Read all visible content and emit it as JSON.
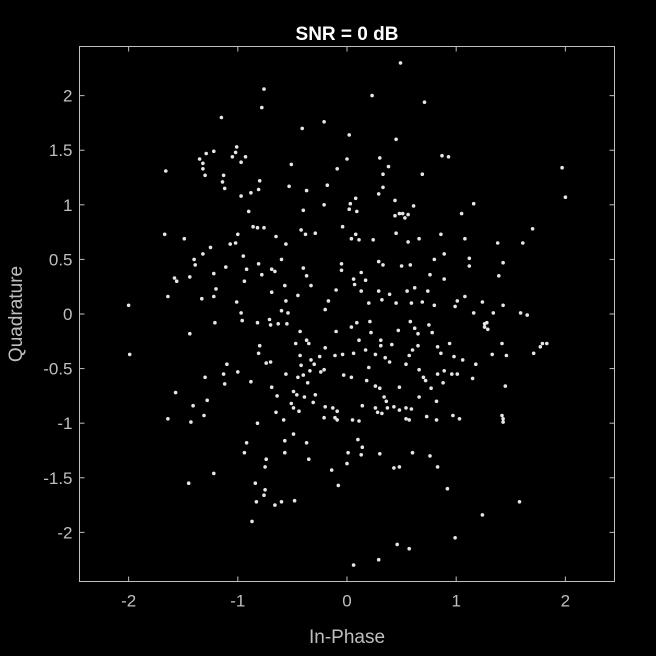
{
  "chart_data": {
    "type": "scatter",
    "title": "SNR = 0 dB",
    "xlabel": "In-Phase",
    "ylabel": "Quadrature",
    "xlim": [
      -2.45,
      2.45
    ],
    "ylim": [
      -2.45,
      2.45
    ],
    "xticks": [
      -2,
      -1,
      0,
      1,
      2
    ],
    "xtick_labels": [
      "-2",
      "-1",
      "0",
      "1",
      "2"
    ],
    "yticks": [
      2,
      1.5,
      1,
      0.5,
      0,
      -0.5,
      -1,
      -1.5,
      -2
    ],
    "ytick_labels": [
      "2",
      "1.5",
      "1",
      "0.5",
      "0",
      "-0.5",
      "-1",
      "-1.5",
      "-2"
    ],
    "grid": false,
    "colors": {
      "background": "#000000",
      "axes": "#bfbfbf",
      "points": "#e6e6e6",
      "title": "#ffffff"
    },
    "points": [
      [
        0.49,
        2.3
      ],
      [
        -0.76,
        2.06
      ],
      [
        -0.78,
        1.89
      ],
      [
        0.23,
        2.0
      ],
      [
        0.71,
        1.94
      ],
      [
        -1.15,
        1.8
      ],
      [
        -0.21,
        1.76
      ],
      [
        -0.41,
        1.7
      ],
      [
        0.02,
        1.64
      ],
      [
        0.45,
        1.6
      ],
      [
        -1.29,
        1.47
      ],
      [
        -1.22,
        1.49
      ],
      [
        -1.35,
        1.42
      ],
      [
        -1.32,
        1.38
      ],
      [
        -1.01,
        1.53
      ],
      [
        -1.02,
        1.48
      ],
      [
        -1.05,
        1.44
      ],
      [
        -0.93,
        1.44
      ],
      [
        -0.97,
        1.39
      ],
      [
        -1.32,
        1.33
      ],
      [
        -1.3,
        1.27
      ],
      [
        -1.13,
        1.27
      ],
      [
        -1.66,
        1.31
      ],
      [
        -0.51,
        1.37
      ],
      [
        0.0,
        1.42
      ],
      [
        -0.09,
        1.33
      ],
      [
        0.3,
        1.43
      ],
      [
        0.38,
        1.35
      ],
      [
        0.87,
        1.45
      ],
      [
        0.93,
        1.44
      ],
      [
        0.33,
        1.28
      ],
      [
        0.33,
        1.16
      ],
      [
        0.69,
        1.28
      ],
      [
        -1.14,
        1.21
      ],
      [
        -1.12,
        1.15
      ],
      [
        -0.97,
        1.08
      ],
      [
        -0.8,
        1.22
      ],
      [
        -0.81,
        1.14
      ],
      [
        -0.88,
        1.11
      ],
      [
        -0.53,
        1.17
      ],
      [
        -0.37,
        1.13
      ],
      [
        -0.18,
        1.18
      ],
      [
        -0.21,
        1.0
      ],
      [
        0.03,
        1.01
      ],
      [
        0.08,
        1.06
      ],
      [
        0.29,
        1.1
      ],
      [
        0.44,
        1.04
      ],
      [
        0.61,
        0.99
      ],
      [
        0.48,
        0.92
      ],
      [
        0.51,
        0.92
      ],
      [
        0.56,
        0.91
      ],
      [
        0.44,
        0.9
      ],
      [
        0.53,
        0.88
      ],
      [
        0.02,
        0.96
      ],
      [
        0.09,
        0.94
      ],
      [
        1.97,
        1.34
      ],
      [
        2.0,
        1.07
      ],
      [
        1.16,
        1.01
      ],
      [
        1.05,
        0.92
      ],
      [
        -0.9,
        0.94
      ],
      [
        -0.86,
        0.8
      ],
      [
        -0.82,
        0.79
      ],
      [
        -0.76,
        0.79
      ],
      [
        -0.4,
        0.95
      ],
      [
        -0.65,
        0.71
      ],
      [
        -0.56,
        0.64
      ],
      [
        -0.42,
        0.77
      ],
      [
        -0.38,
        0.73
      ],
      [
        -0.29,
        0.74
      ],
      [
        -0.04,
        0.8
      ],
      [
        -1.0,
        0.73
      ],
      [
        -1.07,
        0.64
      ],
      [
        -1.02,
        0.65
      ],
      [
        0.08,
        0.73
      ],
      [
        0.04,
        0.69
      ],
      [
        0.11,
        0.68
      ],
      [
        0.24,
        0.68
      ],
      [
        0.45,
        0.74
      ],
      [
        0.56,
        0.66
      ],
      [
        0.66,
        0.69
      ],
      [
        0.86,
        0.73
      ],
      [
        0.89,
        0.55
      ],
      [
        0.8,
        0.5
      ],
      [
        1.08,
        0.69
      ],
      [
        1.38,
        0.65
      ],
      [
        1.7,
        0.78
      ],
      [
        1.61,
        0.65
      ],
      [
        1.43,
        0.47
      ],
      [
        1.39,
        0.35
      ],
      [
        1.12,
        0.51
      ],
      [
        1.12,
        0.44
      ],
      [
        -1.25,
        0.61
      ],
      [
        -1.32,
        0.55
      ],
      [
        -1.67,
        0.73
      ],
      [
        -1.49,
        0.69
      ],
      [
        -1.4,
        0.5
      ],
      [
        -1.39,
        0.45
      ],
      [
        -1.11,
        0.43
      ],
      [
        -0.95,
        0.53
      ],
      [
        -0.92,
        0.41
      ],
      [
        -0.81,
        0.46
      ],
      [
        -0.69,
        0.41
      ],
      [
        -0.6,
        0.5
      ],
      [
        -0.66,
        0.39
      ],
      [
        -0.78,
        0.36
      ],
      [
        -0.94,
        0.3
      ],
      [
        -1.22,
        0.37
      ],
      [
        -1.44,
        0.34
      ],
      [
        -1.56,
        0.3
      ],
      [
        -1.58,
        0.33
      ],
      [
        -0.4,
        0.42
      ],
      [
        -0.37,
        0.35
      ],
      [
        -0.33,
        0.26
      ],
      [
        -0.05,
        0.46
      ],
      [
        -0.05,
        0.4
      ],
      [
        0.29,
        0.48
      ],
      [
        0.33,
        0.45
      ],
      [
        0.5,
        0.44
      ],
      [
        0.58,
        0.45
      ],
      [
        0.76,
        0.36
      ],
      [
        0.13,
        0.38
      ],
      [
        0.07,
        0.27
      ],
      [
        0.06,
        0.32
      ],
      [
        0.17,
        0.31
      ],
      [
        0.89,
        0.32
      ],
      [
        -1.2,
        0.23
      ],
      [
        -1.22,
        0.16
      ],
      [
        -1.33,
        0.14
      ],
      [
        -1.64,
        0.16
      ],
      [
        -2.0,
        0.08
      ],
      [
        -0.69,
        0.2
      ],
      [
        -0.57,
        0.26
      ],
      [
        -0.56,
        0.12
      ],
      [
        -0.45,
        0.17
      ],
      [
        -0.6,
        0.03
      ],
      [
        -0.1,
        0.22
      ],
      [
        -0.17,
        0.12
      ],
      [
        -0.2,
        0.04
      ],
      [
        -0.54,
        0.01
      ],
      [
        0.13,
        0.21
      ],
      [
        0.29,
        0.21
      ],
      [
        0.2,
        0.1
      ],
      [
        0.32,
        0.13
      ],
      [
        0.39,
        0.18
      ],
      [
        0.45,
        0.1
      ],
      [
        0.55,
        0.21
      ],
      [
        0.62,
        0.24
      ],
      [
        0.69,
        0.11
      ],
      [
        0.74,
        0.21
      ],
      [
        0.59,
        0.1
      ],
      [
        0.8,
        0.08
      ],
      [
        0.99,
        0.07
      ],
      [
        1.01,
        0.12
      ],
      [
        1.08,
        0.16
      ],
      [
        1.16,
        0.01
      ],
      [
        1.24,
        0.11
      ],
      [
        1.34,
        0.01
      ],
      [
        1.43,
        0.08
      ],
      [
        1.59,
        0.01
      ],
      [
        1.65,
        -0.01
      ],
      [
        1.28,
        -0.08
      ],
      [
        1.26,
        -0.12
      ],
      [
        1.26,
        -0.09
      ],
      [
        1.29,
        -0.14
      ],
      [
        1.42,
        -0.27
      ],
      [
        1.79,
        -0.27
      ],
      [
        1.83,
        -0.27
      ],
      [
        1.77,
        -0.3
      ],
      [
        1.33,
        -0.37
      ],
      [
        1.71,
        -0.36
      ],
      [
        -1.01,
        0.11
      ],
      [
        -0.97,
        0.01
      ],
      [
        -0.96,
        -0.06
      ],
      [
        -0.82,
        -0.08
      ],
      [
        -0.71,
        -0.05
      ],
      [
        -0.7,
        -0.1
      ],
      [
        -0.63,
        -0.09
      ],
      [
        -0.55,
        -0.09
      ],
      [
        -1.21,
        -0.08
      ],
      [
        -1.44,
        -0.18
      ],
      [
        -1.99,
        -0.37
      ],
      [
        -0.43,
        -0.16
      ],
      [
        -0.47,
        -0.27
      ],
      [
        -0.37,
        -0.24
      ],
      [
        -0.35,
        -0.27
      ],
      [
        -0.1,
        -0.16
      ],
      [
        0.04,
        -0.12
      ],
      [
        0.09,
        -0.08
      ],
      [
        0.21,
        -0.07
      ],
      [
        0.22,
        -0.17
      ],
      [
        0.11,
        -0.24
      ],
      [
        0.31,
        -0.24
      ],
      [
        0.41,
        -0.28
      ],
      [
        0.47,
        -0.15
      ],
      [
        0.58,
        -0.07
      ],
      [
        0.62,
        -0.13
      ],
      [
        0.65,
        -0.18
      ],
      [
        0.75,
        -0.1
      ],
      [
        0.78,
        -0.17
      ],
      [
        0.94,
        -0.27
      ],
      [
        0.86,
        -0.36
      ],
      [
        0.83,
        -0.3
      ],
      [
        0.98,
        -0.39
      ],
      [
        1.06,
        -0.42
      ],
      [
        0.65,
        -0.29
      ],
      [
        0.6,
        -0.33
      ],
      [
        0.57,
        -0.38
      ],
      [
        -0.8,
        -0.29
      ],
      [
        -0.81,
        -0.36
      ],
      [
        -0.74,
        -0.45
      ],
      [
        -0.7,
        -0.44
      ],
      [
        -0.43,
        -0.38
      ],
      [
        -0.33,
        -0.42
      ],
      [
        -0.42,
        -0.47
      ],
      [
        -0.3,
        -0.46
      ],
      [
        -0.2,
        -0.31
      ],
      [
        -0.25,
        -0.39
      ],
      [
        -0.11,
        -0.38
      ],
      [
        -0.04,
        -0.37
      ],
      [
        0.06,
        -0.36
      ],
      [
        0.17,
        -0.33
      ],
      [
        0.26,
        -0.37
      ],
      [
        0.31,
        -0.29
      ],
      [
        0.35,
        -0.4
      ],
      [
        0.39,
        -0.44
      ],
      [
        0.54,
        -0.46
      ],
      [
        0.66,
        -0.51
      ],
      [
        0.7,
        -0.58
      ],
      [
        0.72,
        -0.61
      ],
      [
        0.83,
        -0.55
      ],
      [
        0.89,
        -0.52
      ],
      [
        0.96,
        -0.55
      ],
      [
        1.01,
        -0.55
      ],
      [
        1.18,
        -0.46
      ],
      [
        1.15,
        -0.59
      ],
      [
        1.46,
        -0.38
      ],
      [
        -1.1,
        -0.46
      ],
      [
        -1.13,
        -0.55
      ],
      [
        -1.3,
        -0.58
      ],
      [
        -1.57,
        -0.72
      ],
      [
        -0.56,
        -0.55
      ],
      [
        -0.45,
        -0.58
      ],
      [
        -0.4,
        -0.56
      ],
      [
        -0.34,
        -0.52
      ],
      [
        -0.24,
        -0.53
      ],
      [
        -0.21,
        -0.51
      ],
      [
        -0.36,
        -0.63
      ],
      [
        -0.49,
        -0.71
      ],
      [
        -0.64,
        -0.75
      ],
      [
        -0.69,
        -0.67
      ],
      [
        -0.88,
        -0.62
      ],
      [
        -1.0,
        -0.53
      ],
      [
        -1.12,
        -0.64
      ],
      [
        -0.03,
        -0.56
      ],
      [
        0.04,
        -0.58
      ],
      [
        0.18,
        -0.61
      ],
      [
        0.2,
        -0.49
      ],
      [
        0.26,
        -0.66
      ],
      [
        0.3,
        -0.68
      ],
      [
        0.36,
        -0.8
      ],
      [
        0.48,
        -0.67
      ],
      [
        0.77,
        -0.68
      ],
      [
        0.82,
        -0.8
      ],
      [
        0.88,
        -0.63
      ],
      [
        0.66,
        -0.76
      ],
      [
        1.45,
        -0.66
      ],
      [
        -0.29,
        -0.74
      ],
      [
        -0.31,
        -0.81
      ],
      [
        -0.39,
        -0.76
      ],
      [
        -0.46,
        -0.74
      ],
      [
        -0.51,
        -0.82
      ],
      [
        -0.49,
        -0.86
      ],
      [
        -0.44,
        -0.89
      ],
      [
        -0.58,
        -0.97
      ],
      [
        -0.2,
        -0.85
      ],
      [
        -0.13,
        -0.86
      ],
      [
        -0.09,
        -0.89
      ],
      [
        0.14,
        -0.84
      ],
      [
        0.26,
        -0.86
      ],
      [
        0.34,
        -0.76
      ],
      [
        0.37,
        -0.86
      ],
      [
        0.43,
        -0.85
      ],
      [
        0.48,
        -0.88
      ],
      [
        0.54,
        -0.86
      ],
      [
        0.59,
        -0.87
      ],
      [
        -1.41,
        -0.84
      ],
      [
        -1.64,
        -0.96
      ],
      [
        -1.43,
        -0.99
      ],
      [
        -1.28,
        -0.79
      ],
      [
        -1.31,
        -0.93
      ],
      [
        -0.65,
        -0.9
      ],
      [
        -0.82,
        -1.0
      ],
      [
        -0.21,
        -0.95
      ],
      [
        -0.11,
        -0.95
      ],
      [
        -0.09,
        -0.97
      ],
      [
        0.05,
        -0.97
      ],
      [
        0.11,
        -0.98
      ],
      [
        0.28,
        -0.9
      ],
      [
        0.32,
        -0.91
      ],
      [
        0.54,
        -0.96
      ],
      [
        0.57,
        -0.97
      ],
      [
        0.73,
        -0.94
      ],
      [
        0.82,
        -0.97
      ],
      [
        0.97,
        -0.93
      ],
      [
        1.03,
        -0.96
      ],
      [
        1.42,
        -0.93
      ],
      [
        1.43,
        -0.96
      ],
      [
        1.43,
        -0.99
      ],
      [
        -0.49,
        -1.1
      ],
      [
        -0.57,
        -1.16
      ],
      [
        -0.37,
        -1.18
      ],
      [
        0.1,
        -1.15
      ],
      [
        0.14,
        -1.22
      ],
      [
        0.13,
        -1.29
      ],
      [
        0.01,
        -1.27
      ],
      [
        -0.57,
        -1.27
      ],
      [
        -0.92,
        -1.18
      ],
      [
        -0.94,
        -1.27
      ],
      [
        -0.74,
        -1.33
      ],
      [
        -0.75,
        -1.4
      ],
      [
        -0.35,
        -1.33
      ],
      [
        0.3,
        -1.28
      ],
      [
        0.43,
        -1.41
      ],
      [
        0.48,
        -1.4
      ],
      [
        0.6,
        -1.27
      ],
      [
        0.76,
        -1.3
      ],
      [
        0.83,
        -1.4
      ],
      [
        0.0,
        -1.37
      ],
      [
        -0.14,
        -1.43
      ],
      [
        -0.75,
        -1.61
      ],
      [
        -0.76,
        -1.66
      ],
      [
        -1.45,
        -1.55
      ],
      [
        -1.22,
        -1.46
      ],
      [
        -0.84,
        -1.55
      ],
      [
        -0.83,
        -1.72
      ],
      [
        -0.6,
        -1.72
      ],
      [
        -0.48,
        -1.71
      ],
      [
        -0.08,
        -1.57
      ],
      [
        0.92,
        -1.6
      ],
      [
        1.24,
        -1.84
      ],
      [
        1.58,
        -1.72
      ],
      [
        -0.87,
        -1.9
      ],
      [
        -0.66,
        -1.75
      ],
      [
        0.06,
        -2.3
      ],
      [
        0.29,
        -2.25
      ],
      [
        0.46,
        -2.11
      ],
      [
        0.57,
        -2.15
      ],
      [
        0.99,
        -2.05
      ]
    ]
  }
}
